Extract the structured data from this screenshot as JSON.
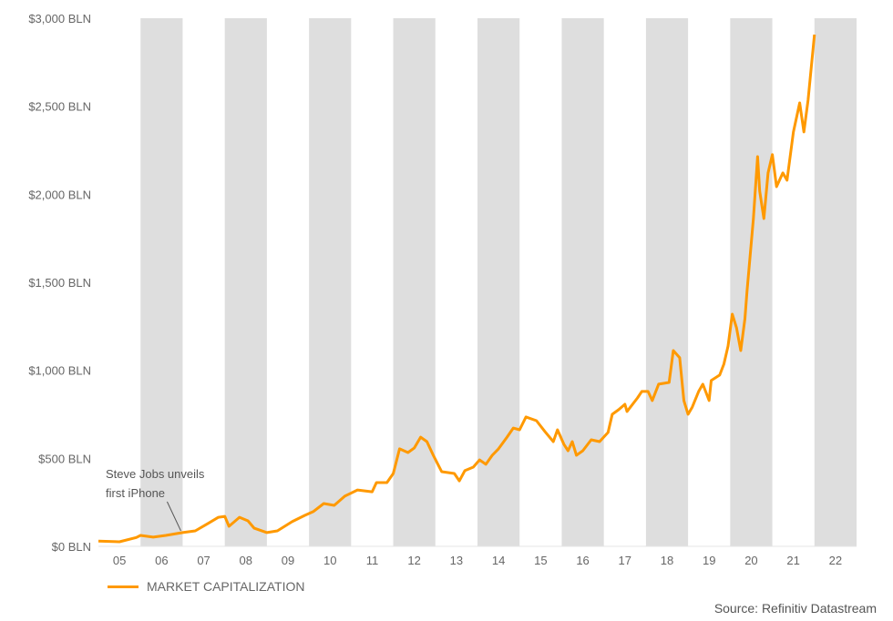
{
  "chart_data": {
    "type": "line",
    "title": "",
    "xlabel": "",
    "ylabel": "",
    "xlim": [
      2005,
      2023
    ],
    "ylim": [
      0,
      3000
    ],
    "y_ticks": [
      0,
      500,
      1000,
      1500,
      2000,
      2500,
      3000
    ],
    "y_tick_labels": [
      "$0 BLN",
      "$500 BLN",
      "$1,000 BLN",
      "$1,500 BLN",
      "$2,000 BLN",
      "$2,500 BLN",
      "$3,000 BLN"
    ],
    "x_tick_labels": [
      "05",
      "06",
      "07",
      "08",
      "09",
      "10",
      "11",
      "12",
      "13",
      "14",
      "15",
      "16",
      "17",
      "18",
      "19",
      "20",
      "21",
      "22"
    ],
    "shaded_years": [
      "06",
      "08",
      "10",
      "12",
      "14",
      "16",
      "18",
      "20",
      "22"
    ],
    "shade_color": "#dedede",
    "grid": false,
    "legend_position": "bottom-left",
    "series": [
      {
        "name": "MARKET CAPITALIZATION",
        "color": "#ff9900",
        "x": [
          2005.0,
          2005.5,
          2005.9,
          2006.0,
          2006.3,
          2006.6,
          2007.0,
          2007.3,
          2007.6,
          2007.85,
          2008.0,
          2008.1,
          2008.35,
          2008.55,
          2008.7,
          2009.0,
          2009.25,
          2009.6,
          2009.9,
          2010.1,
          2010.35,
          2010.6,
          2010.85,
          2011.15,
          2011.5,
          2011.6,
          2011.85,
          2012.0,
          2012.15,
          2012.35,
          2012.5,
          2012.65,
          2012.8,
          2012.95,
          2013.15,
          2013.45,
          2013.57,
          2013.7,
          2013.9,
          2014.05,
          2014.2,
          2014.35,
          2014.5,
          2014.7,
          2014.85,
          2015.0,
          2015.15,
          2015.4,
          2015.6,
          2015.8,
          2015.9,
          2016.05,
          2016.15,
          2016.25,
          2016.35,
          2016.5,
          2016.7,
          2016.9,
          2017.1,
          2017.2,
          2017.35,
          2017.5,
          2017.55,
          2017.8,
          2017.9,
          2018.05,
          2018.15,
          2018.3,
          2018.55,
          2018.65,
          2018.8,
          2018.9,
          2019.0,
          2019.1,
          2019.25,
          2019.35,
          2019.5,
          2019.55,
          2019.75,
          2019.85,
          2019.95,
          2020.05,
          2020.15,
          2020.25,
          2020.35,
          2020.4,
          2020.55,
          2020.65,
          2020.7,
          2020.8,
          2020.9,
          2021.0,
          2021.1,
          2021.25,
          2021.35,
          2021.5,
          2021.65,
          2021.75,
          2021.85,
          2022.0
        ],
        "y": [
          30,
          26,
          50,
          62,
          52,
          62,
          78,
          88,
          130,
          165,
          170,
          114,
          165,
          145,
          103,
          78,
          88,
          140,
          176,
          197,
          243,
          233,
          285,
          320,
          310,
          362,
          362,
          414,
          554,
          533,
          559,
          620,
          595,
          517,
          424,
          414,
          372,
          430,
          450,
          491,
          466,
          517,
          554,
          620,
          672,
          662,
          735,
          714,
          652,
          595,
          662,
          580,
          543,
          595,
          517,
          543,
          605,
          595,
          647,
          750,
          776,
          807,
          766,
          843,
          880,
          880,
          828,
          921,
          931,
          1112,
          1071,
          828,
          750,
          791,
          880,
          921,
          828,
          942,
          973,
          1035,
          1138,
          1319,
          1241,
          1112,
          1293,
          1449,
          1862,
          2214,
          2018,
          1862,
          2121,
          2225,
          2043,
          2121,
          2080,
          2354,
          2519,
          2354,
          2535,
          2907
        ]
      }
    ],
    "annotations": [
      {
        "lines": [
          "Steve Jobs unveils",
          "first iPhone"
        ],
        "x": 2007.0
      }
    ],
    "source": "Source: Refinitiv Datastream"
  }
}
